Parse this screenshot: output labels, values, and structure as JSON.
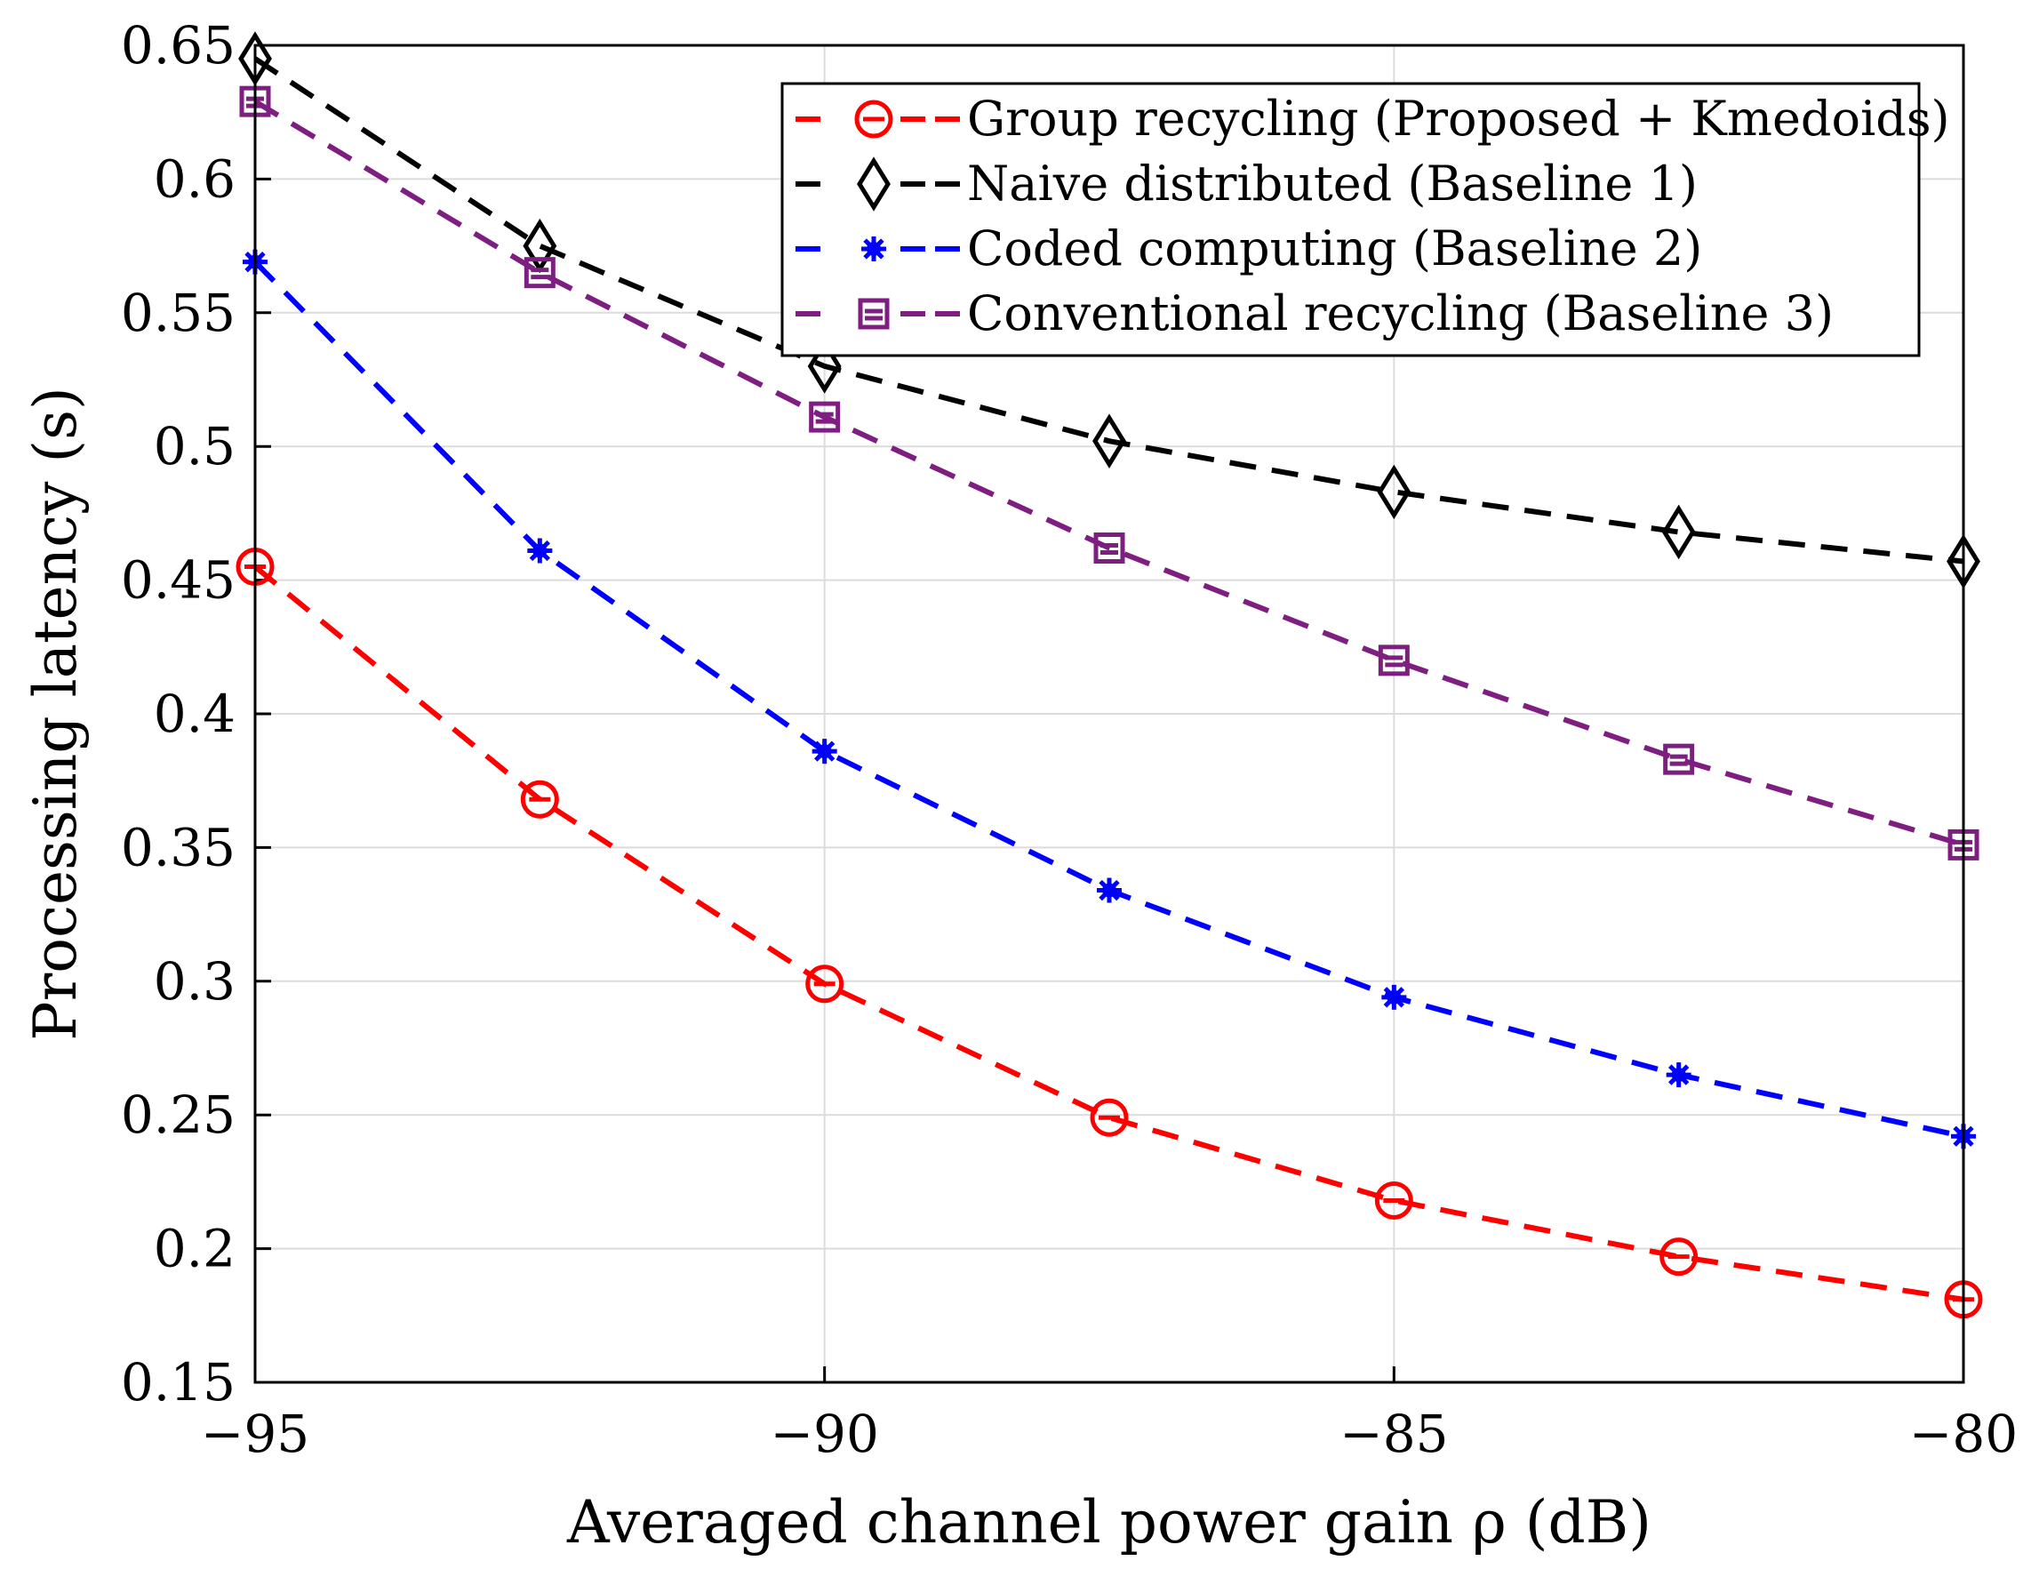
{
  "chart_data": {
    "type": "line",
    "title": "",
    "xlabel": "Averaged channel power gain ρ (dB)",
    "ylabel": "Processing latency (s)",
    "xlim": [
      -95,
      -80
    ],
    "ylim": [
      0.15,
      0.65
    ],
    "xticks": [
      -95,
      -90,
      -85,
      -80
    ],
    "xtick_labels": [
      "−95",
      "−90",
      "−85",
      "−80"
    ],
    "yticks": [
      0.15,
      0.2,
      0.25,
      0.3,
      0.35,
      0.4,
      0.45,
      0.5,
      0.55,
      0.6,
      0.65
    ],
    "ytick_labels": [
      "0.15",
      "0.2",
      "0.25",
      "0.3",
      "0.35",
      "0.4",
      "0.45",
      "0.5",
      "0.55",
      "0.6",
      "0.65"
    ],
    "grid": true,
    "legend_position": "top-right",
    "x": [
      -95,
      -92.5,
      -90,
      -87.5,
      -85,
      -82.5,
      -80
    ],
    "series": [
      {
        "name": "Group recycling (Proposed + Kmedoids)",
        "color": "#ff0000",
        "marker": "circle",
        "values": [
          0.455,
          0.368,
          0.299,
          0.249,
          0.218,
          0.197,
          0.181
        ]
      },
      {
        "name": "Naive distributed (Baseline 1)",
        "color": "#000000",
        "marker": "diamond",
        "values": [
          0.645,
          0.575,
          0.53,
          0.502,
          0.483,
          0.468,
          0.457
        ]
      },
      {
        "name": "Coded computing (Baseline 2)",
        "color": "#0000ff",
        "marker": "asterisk",
        "values": [
          0.569,
          0.461,
          0.386,
          0.334,
          0.294,
          0.265,
          0.242
        ]
      },
      {
        "name": "Conventional recycling (Baseline 3)",
        "color": "#7e1e80",
        "marker": "square",
        "values": [
          0.629,
          0.565,
          0.511,
          0.462,
          0.42,
          0.383,
          0.351
        ]
      }
    ]
  }
}
